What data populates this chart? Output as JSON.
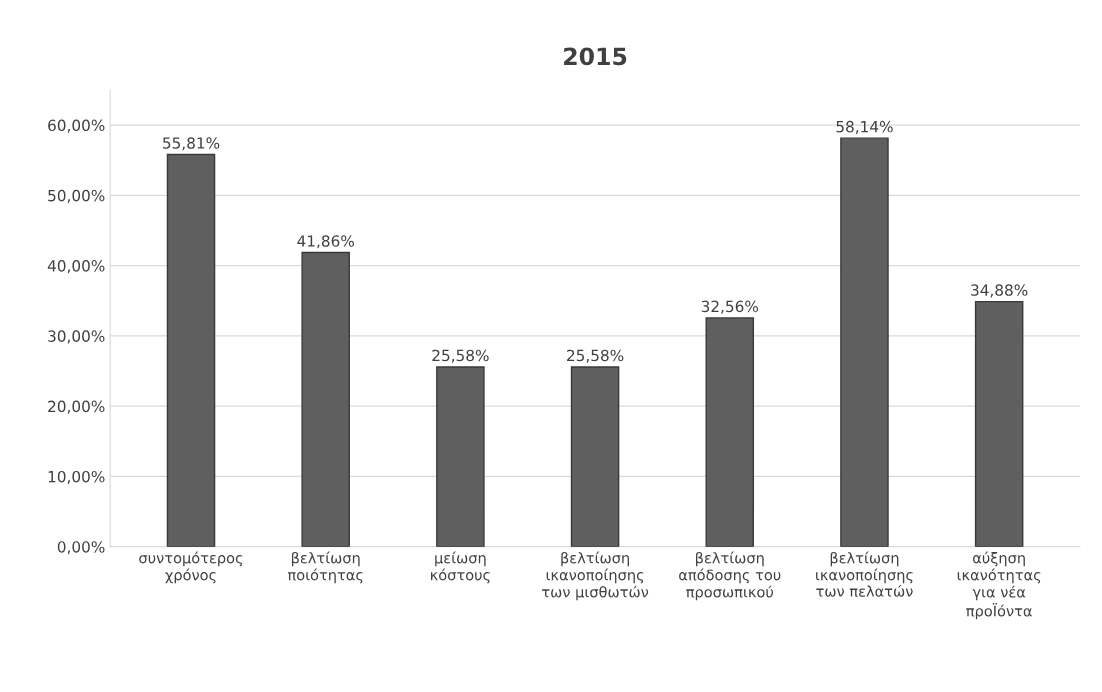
{
  "chart_data": {
    "type": "bar",
    "title": "2015",
    "categories": [
      "συντομότερος\nχρόνος",
      "βελτίωση\nποιότητας",
      "μείωση\nκόστους",
      "βελτίωση\nικανοποίησης\nτων μισθωτών",
      "βελτίωση\nαπόδοσης του\nπροσωπικού",
      "βελτίωση\nικανοποίησης\nτων πελατών",
      "αύξηση\nικανότητας\nγια νέα\nπροΪόντα"
    ],
    "values": [
      55.81,
      41.86,
      25.58,
      25.58,
      32.56,
      58.14,
      34.88
    ],
    "value_labels": [
      "55,81%",
      "41,86%",
      "25,58%",
      "25,58%",
      "32,56%",
      "58,14%",
      "34,88%"
    ],
    "color": "#5f5f5f",
    "ylim": [
      0,
      65
    ],
    "yticks": [
      {
        "value": 0,
        "label": "0,00%"
      },
      {
        "value": 10,
        "label": "10,00%"
      },
      {
        "value": 20,
        "label": "20,00%"
      },
      {
        "value": 30,
        "label": "30,00%"
      },
      {
        "value": 40,
        "label": "40,00%"
      },
      {
        "value": 50,
        "label": "50,00%"
      },
      {
        "value": 60,
        "label": "60,00%"
      }
    ],
    "grid": "y"
  }
}
